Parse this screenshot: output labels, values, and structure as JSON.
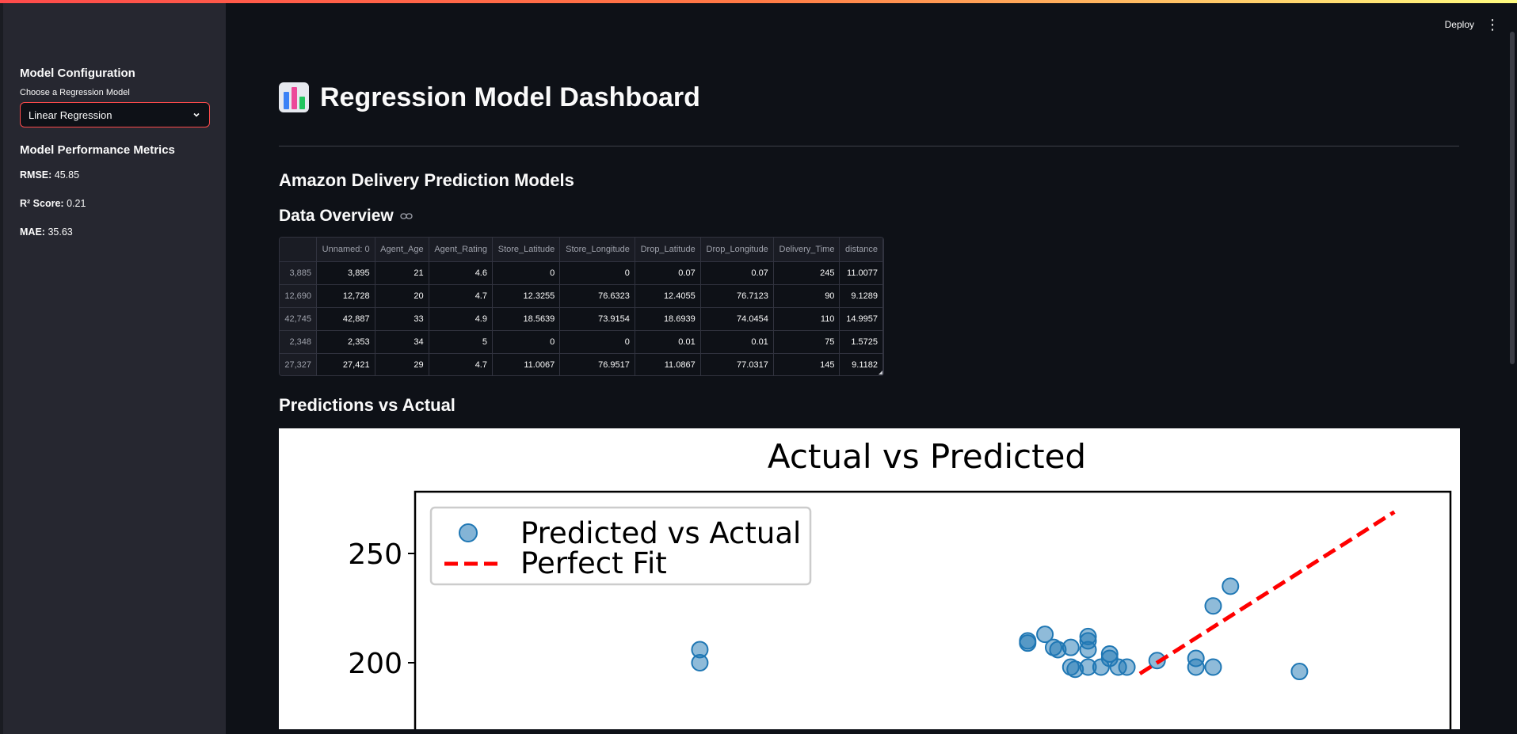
{
  "header": {
    "deploy_label": "Deploy",
    "menu_icon": "kebab-menu-icon"
  },
  "sidebar": {
    "config_title": "Model Configuration",
    "select_label": "Choose a Regression Model",
    "select_value": "Linear Regression",
    "metrics_title": "Model Performance Metrics",
    "metrics": [
      {
        "label": "RMSE:",
        "value": "45.85"
      },
      {
        "label": "R² Score:",
        "value": "0.21"
      },
      {
        "label": "MAE:",
        "value": "35.63"
      }
    ]
  },
  "main": {
    "title": "Regression Model Dashboard",
    "subtitle": "Amazon Delivery Prediction Models",
    "data_overview": "Data Overview",
    "predictions_heading": "Predictions vs Actual"
  },
  "table": {
    "columns": [
      "",
      "Unnamed: 0",
      "Agent_Age",
      "Agent_Rating",
      "Store_Latitude",
      "Store_Longitude",
      "Drop_Latitude",
      "Drop_Longitude",
      "Delivery_Time",
      "distance"
    ],
    "rows": [
      [
        "3,885",
        "3,895",
        "21",
        "4.6",
        "0",
        "0",
        "0.07",
        "0.07",
        "245",
        "11.0077"
      ],
      [
        "12,690",
        "12,728",
        "20",
        "4.7",
        "12.3255",
        "76.6323",
        "12.4055",
        "76.7123",
        "90",
        "9.1289"
      ],
      [
        "42,745",
        "42,887",
        "33",
        "4.9",
        "18.5639",
        "73.9154",
        "18.6939",
        "74.0454",
        "110",
        "14.9957"
      ],
      [
        "2,348",
        "2,353",
        "34",
        "5",
        "0",
        "0",
        "0.01",
        "0.01",
        "75",
        "1.5725"
      ],
      [
        "27,327",
        "27,421",
        "29",
        "4.7",
        "11.0067",
        "76.9517",
        "11.0867",
        "77.0317",
        "145",
        "9.1182"
      ]
    ]
  },
  "chart_data": {
    "type": "scatter",
    "title": "Actual vs Predicted",
    "legend": [
      "Predicted vs Actual",
      "Perfect Fit"
    ],
    "legend_position": "upper-left",
    "y_ticks": [
      250,
      200
    ],
    "ylim": [
      195,
      280
    ],
    "series": [
      {
        "name": "Predicted vs Actual",
        "color": "#1f77b4",
        "points": [
          {
            "x": 66,
            "y": 206
          },
          {
            "x": 66,
            "y": 200
          },
          {
            "x": 142,
            "y": 210
          },
          {
            "x": 142,
            "y": 209
          },
          {
            "x": 146,
            "y": 213
          },
          {
            "x": 148,
            "y": 207
          },
          {
            "x": 149,
            "y": 206
          },
          {
            "x": 152,
            "y": 207
          },
          {
            "x": 152,
            "y": 198
          },
          {
            "x": 153,
            "y": 197
          },
          {
            "x": 156,
            "y": 212
          },
          {
            "x": 156,
            "y": 210
          },
          {
            "x": 156,
            "y": 206
          },
          {
            "x": 156,
            "y": 198
          },
          {
            "x": 159,
            "y": 198
          },
          {
            "x": 161,
            "y": 204
          },
          {
            "x": 161,
            "y": 202
          },
          {
            "x": 163,
            "y": 198
          },
          {
            "x": 165,
            "y": 198
          },
          {
            "x": 172,
            "y": 201
          },
          {
            "x": 181,
            "y": 202
          },
          {
            "x": 181,
            "y": 198
          },
          {
            "x": 185,
            "y": 198
          },
          {
            "x": 185,
            "y": 226
          },
          {
            "x": 189,
            "y": 235
          },
          {
            "x": 205,
            "y": 196
          }
        ]
      },
      {
        "name": "Perfect Fit",
        "color": "#ff0000",
        "style": "dashed",
        "points": [
          {
            "x": 168,
            "y": 195
          },
          {
            "x": 227,
            "y": 269
          }
        ]
      }
    ]
  }
}
